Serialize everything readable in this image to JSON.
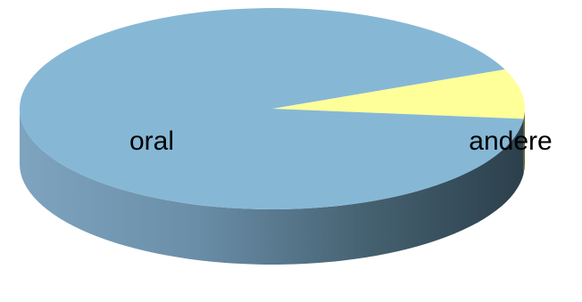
{
  "chart_data": {
    "type": "pie",
    "style": "3d",
    "slices": [
      {
        "label": "oral",
        "value": 92,
        "color": "#86b8d6",
        "side_color": "#4a6a80"
      },
      {
        "label": "andere",
        "value": 8,
        "color": "#ffff99",
        "side_color": "#8a8a40"
      }
    ],
    "legend": "none",
    "title": ""
  }
}
